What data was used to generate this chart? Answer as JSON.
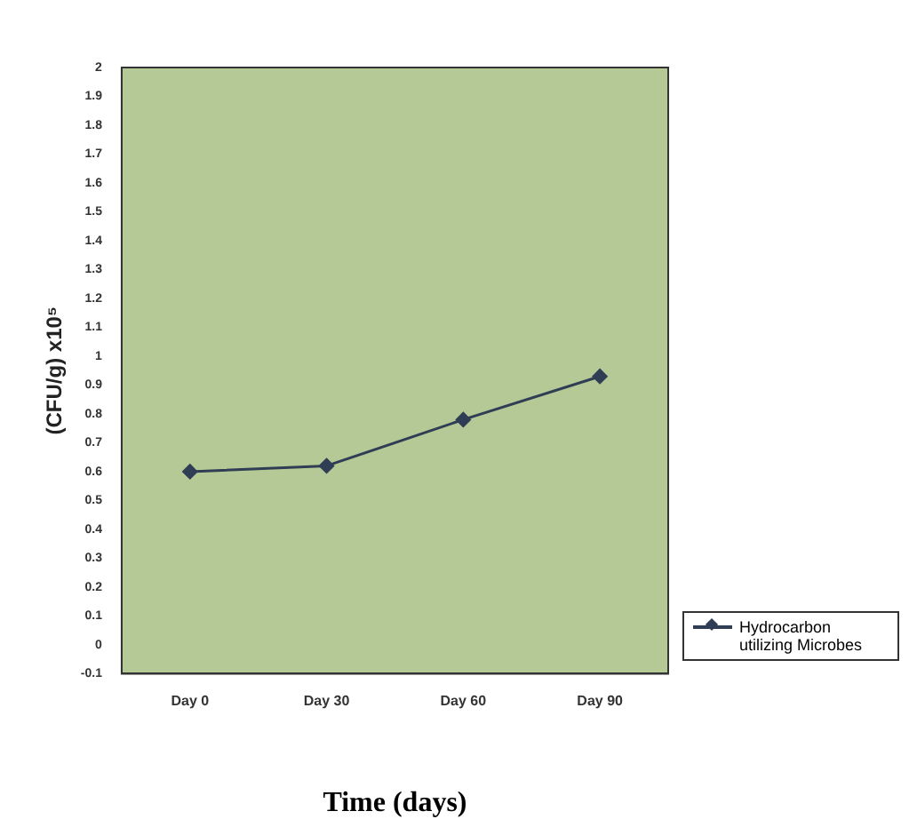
{
  "chart_data": {
    "type": "line",
    "xlabel": "Time (days)",
    "ylabel": "(CFU/g) x10⁵",
    "categories": [
      "Day 0",
      "Day 30",
      "Day 60",
      "Day 90"
    ],
    "series": [
      {
        "name": "Hydrocarbon utilizing Microbes",
        "color": "#2f3e55",
        "values": [
          0.6,
          0.62,
          0.78,
          0.93
        ]
      }
    ],
    "ylim": [
      -0.1,
      2
    ],
    "yticks": [
      -0.1,
      0,
      0.1,
      0.2,
      0.3,
      0.4,
      0.5,
      0.6,
      0.7,
      0.8,
      0.9,
      1,
      1.1,
      1.2,
      1.3,
      1.4,
      1.5,
      1.6,
      1.7,
      1.8,
      1.9,
      2
    ],
    "grid": false,
    "legend": "bottom right",
    "marker": "diamond",
    "line_style": "solid"
  }
}
